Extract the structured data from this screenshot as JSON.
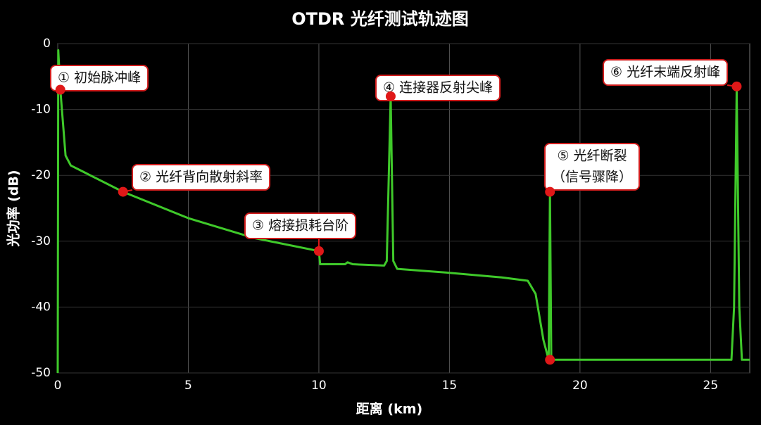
{
  "chart_data": {
    "type": "line",
    "title": "OTDR 光纤测试轨迹图",
    "x_label": "距离 (km)",
    "y_label": "光功率 (dB)",
    "color": "#3fc92a",
    "marker_color": "#e01818",
    "grid": true,
    "xlim": [
      0,
      26.5
    ],
    "ylim": [
      -50,
      0
    ],
    "xticks": [
      0,
      5,
      10,
      15,
      20,
      25
    ],
    "yticks": [
      0,
      -10,
      -20,
      -30,
      -40,
      -50
    ],
    "x": [
      0,
      0.02,
      0.1,
      0.3,
      0.5,
      1,
      2.5,
      5,
      7.5,
      10,
      10.05,
      11,
      11.1,
      11.3,
      12.5,
      12.6,
      12.75,
      12.85,
      13,
      15,
      17,
      18,
      18.3,
      18.6,
      18.8,
      18.85,
      18.9,
      25.8,
      25.9,
      26,
      26.1,
      26.2,
      26.5
    ],
    "values": [
      -50,
      -1,
      -7,
      -17,
      -18.5,
      -19.5,
      -22.5,
      -26.5,
      -29.5,
      -31.5,
      -33.5,
      -33.5,
      -33.2,
      -33.5,
      -33.7,
      -33,
      -8,
      -33,
      -34.2,
      -34.8,
      -35.5,
      -36,
      -38,
      -45,
      -48,
      -22.5,
      -48,
      -48,
      -40,
      -7,
      -40,
      -48,
      -48
    ],
    "annotations": [
      {
        "text": [
          "① 初始脉冲峰"
        ],
        "x": 0.1,
        "y": -7
      },
      {
        "text": [
          "② 光纤背向散射斜率"
        ],
        "x": 2.5,
        "y": -22.5
      },
      {
        "text": [
          "③ 熔接损耗台阶"
        ],
        "x": 10,
        "y": -31.5
      },
      {
        "text": [
          "④ 连接器反射尖峰"
        ],
        "x": 12.75,
        "y": -8
      },
      {
        "text": [
          "⑤ 光纤断裂",
          "（信号骤降）"
        ],
        "x": 18.85,
        "y": -22.5
      },
      {
        "x": 18.85,
        "y": -48
      },
      {
        "text": [
          "⑥ 光纤末端反射峰"
        ],
        "x": 26,
        "y": -6.5
      }
    ]
  }
}
